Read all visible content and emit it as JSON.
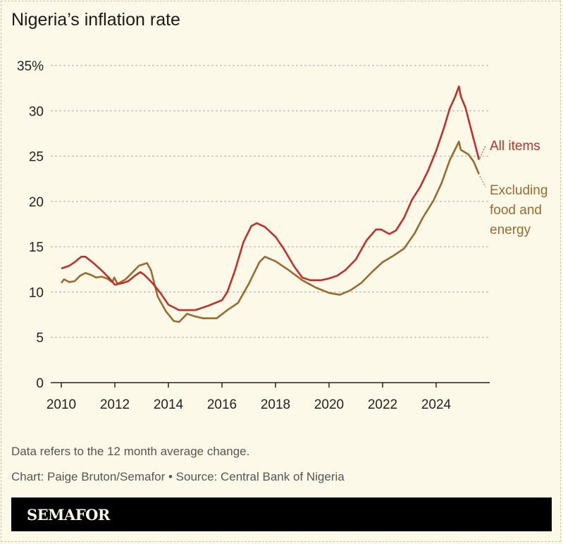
{
  "chart_data": {
    "type": "line",
    "title": "Nigeria’s inflation rate",
    "xlabel": "",
    "ylabel": "",
    "xlim": [
      2010,
      2026
    ],
    "ylim": [
      0,
      35
    ],
    "grid": true,
    "y_ticks": [
      "0",
      "5",
      "10",
      "15",
      "20",
      "25",
      "30",
      "35%"
    ],
    "y_tick_values": [
      0,
      5,
      10,
      15,
      20,
      25,
      30,
      35
    ],
    "x_ticks": [
      "2010",
      "2012",
      "2014",
      "2016",
      "2018",
      "2020",
      "2022",
      "2024"
    ],
    "x_tick_values": [
      2010,
      2012,
      2014,
      2016,
      2018,
      2020,
      2022,
      2024
    ],
    "legend": "direct labels at line ends (right)",
    "series": [
      {
        "name": "All items",
        "label_lines": [
          "All items"
        ],
        "color": "#c0302a",
        "points": [
          [
            2010.0,
            12.6
          ],
          [
            2010.3,
            12.9
          ],
          [
            2010.5,
            13.3
          ],
          [
            2010.75,
            13.9
          ],
          [
            2010.9,
            13.9
          ],
          [
            2011.2,
            13.2
          ],
          [
            2011.5,
            12.4
          ],
          [
            2011.8,
            11.5
          ],
          [
            2012.0,
            10.8
          ],
          [
            2012.3,
            11.0
          ],
          [
            2012.5,
            11.2
          ],
          [
            2012.75,
            11.8
          ],
          [
            2012.95,
            12.2
          ],
          [
            2013.1,
            11.9
          ],
          [
            2013.4,
            11.0
          ],
          [
            2013.7,
            9.9
          ],
          [
            2014.0,
            8.6
          ],
          [
            2014.4,
            8.0
          ],
          [
            2015.0,
            8.0
          ],
          [
            2015.5,
            8.5
          ],
          [
            2016.0,
            9.1
          ],
          [
            2016.2,
            10.0
          ],
          [
            2016.5,
            12.5
          ],
          [
            2016.8,
            15.5
          ],
          [
            2017.1,
            17.3
          ],
          [
            2017.3,
            17.6
          ],
          [
            2017.6,
            17.2
          ],
          [
            2018.0,
            16.1
          ],
          [
            2018.3,
            14.8
          ],
          [
            2018.7,
            12.8
          ],
          [
            2019.0,
            11.6
          ],
          [
            2019.3,
            11.3
          ],
          [
            2019.7,
            11.3
          ],
          [
            2020.0,
            11.5
          ],
          [
            2020.3,
            11.8
          ],
          [
            2020.6,
            12.4
          ],
          [
            2021.0,
            13.6
          ],
          [
            2021.4,
            15.7
          ],
          [
            2021.75,
            16.9
          ],
          [
            2021.95,
            16.9
          ],
          [
            2022.25,
            16.4
          ],
          [
            2022.5,
            16.8
          ],
          [
            2022.8,
            18.2
          ],
          [
            2023.1,
            20.2
          ],
          [
            2023.4,
            21.6
          ],
          [
            2023.7,
            23.4
          ],
          [
            2024.0,
            25.6
          ],
          [
            2024.3,
            28.2
          ],
          [
            2024.5,
            30.2
          ],
          [
            2024.7,
            31.5
          ],
          [
            2024.85,
            32.7
          ],
          [
            2024.92,
            31.6
          ],
          [
            2025.1,
            30.3
          ],
          [
            2025.3,
            28.0
          ],
          [
            2025.6,
            24.6
          ]
        ]
      },
      {
        "name": "Excluding food and energy",
        "label_lines": [
          "Excluding",
          "food and",
          "energy"
        ],
        "color": "#9a6a2e",
        "points": [
          [
            2010.0,
            11.0
          ],
          [
            2010.1,
            11.4
          ],
          [
            2010.3,
            11.1
          ],
          [
            2010.5,
            11.2
          ],
          [
            2010.7,
            11.8
          ],
          [
            2010.9,
            12.1
          ],
          [
            2011.1,
            11.9
          ],
          [
            2011.3,
            11.6
          ],
          [
            2011.5,
            11.7
          ],
          [
            2011.7,
            11.5
          ],
          [
            2011.9,
            11.1
          ],
          [
            2011.98,
            11.6
          ],
          [
            2012.1,
            10.9
          ],
          [
            2012.4,
            11.4
          ],
          [
            2012.7,
            12.3
          ],
          [
            2012.9,
            12.9
          ],
          [
            2013.1,
            13.1
          ],
          [
            2013.2,
            13.2
          ],
          [
            2013.35,
            12.4
          ],
          [
            2013.6,
            9.5
          ],
          [
            2013.9,
            7.9
          ],
          [
            2014.2,
            6.8
          ],
          [
            2014.4,
            6.7
          ],
          [
            2014.7,
            7.6
          ],
          [
            2015.0,
            7.3
          ],
          [
            2015.3,
            7.1
          ],
          [
            2015.8,
            7.1
          ],
          [
            2016.2,
            8.0
          ],
          [
            2016.6,
            8.8
          ],
          [
            2017.0,
            10.9
          ],
          [
            2017.4,
            13.3
          ],
          [
            2017.6,
            13.9
          ],
          [
            2018.0,
            13.4
          ],
          [
            2018.5,
            12.4
          ],
          [
            2019.0,
            11.3
          ],
          [
            2019.5,
            10.5
          ],
          [
            2020.0,
            9.9
          ],
          [
            2020.4,
            9.7
          ],
          [
            2020.8,
            10.2
          ],
          [
            2021.2,
            11.0
          ],
          [
            2021.6,
            12.2
          ],
          [
            2022.0,
            13.3
          ],
          [
            2022.4,
            14.0
          ],
          [
            2022.8,
            14.8
          ],
          [
            2023.2,
            16.5
          ],
          [
            2023.5,
            18.2
          ],
          [
            2023.9,
            20.1
          ],
          [
            2024.2,
            22.0
          ],
          [
            2024.5,
            24.5
          ],
          [
            2024.85,
            26.6
          ],
          [
            2024.92,
            25.7
          ],
          [
            2025.2,
            25.2
          ],
          [
            2025.4,
            24.4
          ],
          [
            2025.6,
            23.0
          ]
        ]
      }
    ]
  },
  "notes": {
    "description": "Data refers to the 12 month average change.",
    "credit": "Chart: Paige Bruton/Semafor • Source: Central Bank of Nigeria"
  },
  "brand": {
    "logo_text": "SEMAFOR"
  }
}
